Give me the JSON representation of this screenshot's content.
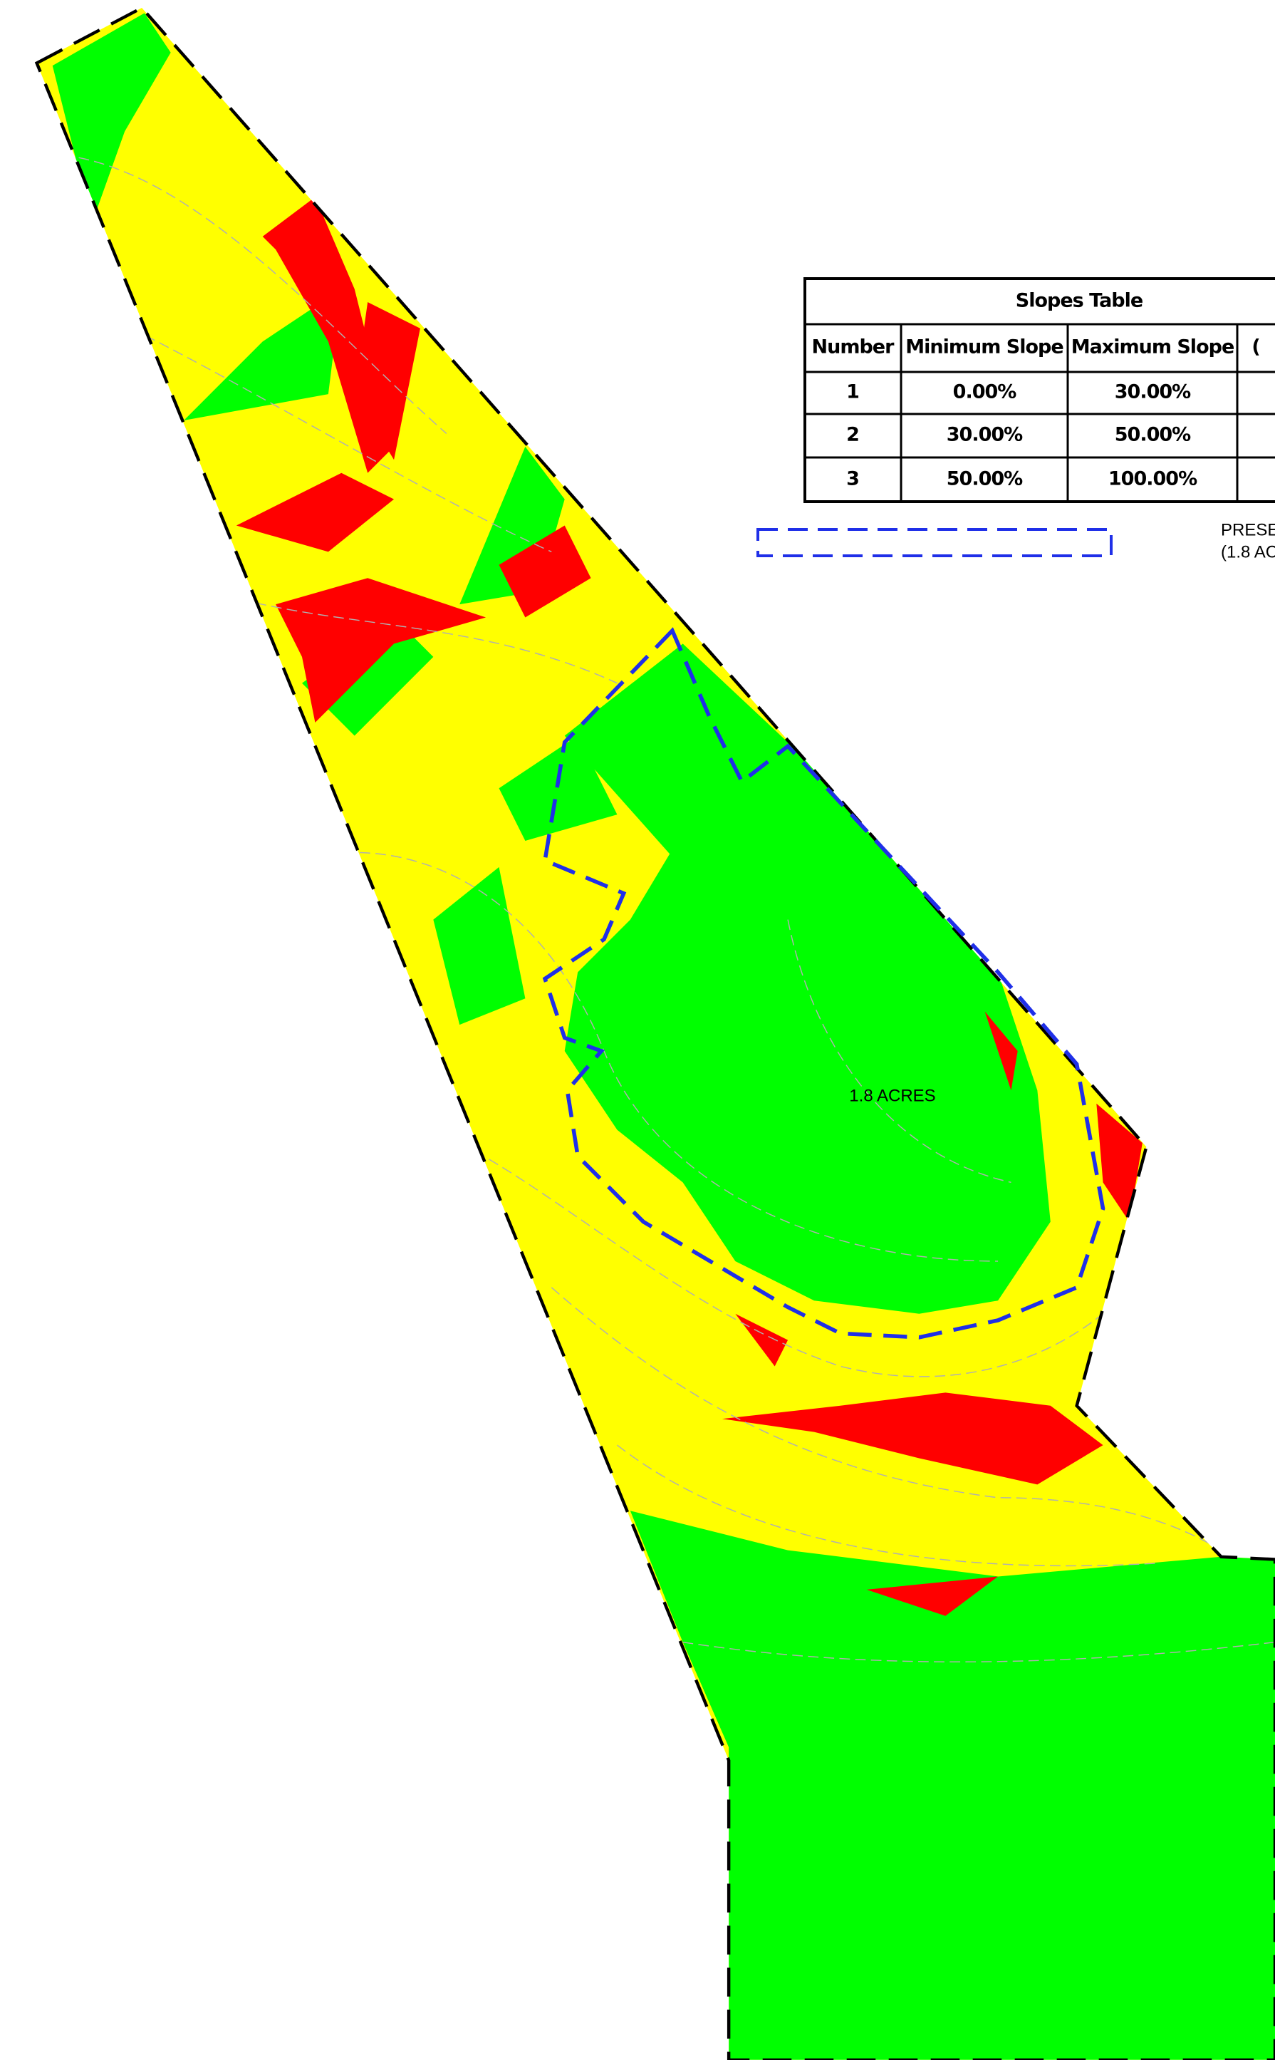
{
  "table": {
    "title": "Slopes Table",
    "headers": [
      "Number",
      "Minimum Slope",
      "Maximum Slope",
      "("
    ],
    "rows": [
      [
        "1",
        "0.00%",
        "30.00%"
      ],
      [
        "2",
        "30.00%",
        "50.00%"
      ],
      [
        "3",
        "50.00%",
        "100.00%"
      ]
    ]
  },
  "legend": {
    "lines": [
      "PRESE",
      "(1.8 AC"
    ]
  },
  "map": {
    "area_label": "1.8 ACRES"
  }
}
